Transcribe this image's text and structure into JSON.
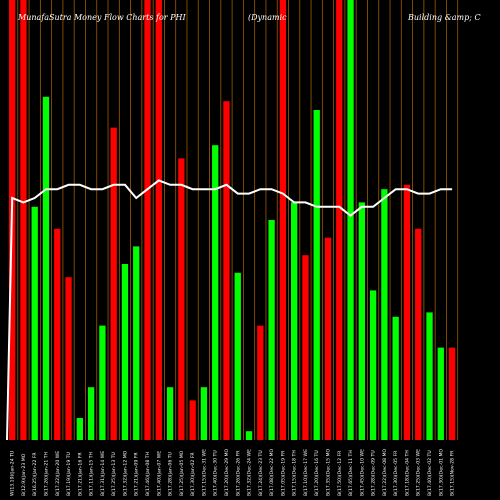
{
  "title_parts": [
    "MunafaSutra  Money Flow  Charts for PHI",
    "(Dynamic",
    "Building &amp; C"
  ],
  "chart_data": {
    "type": "bar",
    "ylim": [
      0,
      100
    ],
    "colors": {
      "up": "#00ff00",
      "down": "#ff0000",
      "line": "#ffffff",
      "grid": "#a05a00",
      "background": "#000000"
    },
    "bars": [
      {
        "value": 100,
        "color": "red"
      },
      {
        "value": 100,
        "color": "red"
      },
      {
        "value": 53,
        "color": "green"
      },
      {
        "value": 78,
        "color": "green"
      },
      {
        "value": 48,
        "color": "red"
      },
      {
        "value": 37,
        "color": "red"
      },
      {
        "value": 5,
        "color": "green"
      },
      {
        "value": 12,
        "color": "green"
      },
      {
        "value": 26,
        "color": "green"
      },
      {
        "value": 71,
        "color": "red"
      },
      {
        "value": 40,
        "color": "green"
      },
      {
        "value": 44,
        "color": "green"
      },
      {
        "value": 100,
        "color": "red"
      },
      {
        "value": 100,
        "color": "red"
      },
      {
        "value": 12,
        "color": "green"
      },
      {
        "value": 64,
        "color": "red"
      },
      {
        "value": 9,
        "color": "red"
      },
      {
        "value": 12,
        "color": "green"
      },
      {
        "value": 67,
        "color": "green"
      },
      {
        "value": 77,
        "color": "red"
      },
      {
        "value": 38,
        "color": "green"
      },
      {
        "value": 2,
        "color": "green"
      },
      {
        "value": 26,
        "color": "red"
      },
      {
        "value": 50,
        "color": "green"
      },
      {
        "value": 100,
        "color": "red"
      },
      {
        "value": 54,
        "color": "green"
      },
      {
        "value": 42,
        "color": "red"
      },
      {
        "value": 75,
        "color": "green"
      },
      {
        "value": 46,
        "color": "red"
      },
      {
        "value": 100,
        "color": "red"
      },
      {
        "value": 100,
        "color": "green"
      },
      {
        "value": 54,
        "color": "green"
      },
      {
        "value": 34,
        "color": "green"
      },
      {
        "value": 57,
        "color": "green"
      },
      {
        "value": 28,
        "color": "green"
      },
      {
        "value": 58,
        "color": "red"
      },
      {
        "value": 48,
        "color": "red"
      },
      {
        "value": 29,
        "color": "green"
      },
      {
        "value": 21,
        "color": "green"
      },
      {
        "value": 21,
        "color": "red"
      }
    ],
    "line": [
      55,
      54,
      55,
      57,
      57,
      58,
      58,
      57,
      57,
      58,
      58,
      55,
      57,
      59,
      58,
      58,
      57,
      57,
      57,
      58,
      56,
      56,
      57,
      57,
      56,
      54,
      54,
      53,
      53,
      53,
      51,
      53,
      53,
      55,
      57,
      57,
      56,
      56,
      57,
      57
    ],
    "x_tick_labels": [
      "W(13.19)(Jan-24 TU",
      "B(12.9)(Jan-23 MO",
      "B(16.25)(Jan-22 FR",
      "B(17.26)(Jan-21 TH",
      "B(17.22)(Jan-20 WE",
      "B(17.19)(Jan-19 TU",
      "B(17.21)(Jan-16 FR",
      "B(17.11)(Jan-15 TH",
      "B(17.31)(Jan-14 WE",
      "B(17.25)(Jan-13 TU",
      "B(17.32)(Jan-12 MO",
      "B(17.21)(Jan-09 FR",
      "B(17.46)(Jan-08 TH",
      "B(17.40)(Jan-07 WE",
      "B(17.28)(Jan-06 TU",
      "B(17.25)(Jan-05 MO",
      "B(17.30)(Jan-02 FR",
      "B(17.15)(Dec-31 WE",
      "B(17.40)(Dec-30 TU",
      "B(17.20)(Dec-29 MO",
      "B(17.26)(Dec-26 FR",
      "B(17.32)(Dec-24 WE",
      "B(17.24)(Dec-23 TU",
      "B(17.08)(Dec-22 MO",
      "B(17.05)(Dec-19 FR",
      "B(17.15)(Dec-18 TH",
      "B(17.10)(Dec-17 WE",
      "B(17.20)(Dec-16 TU",
      "B(17.35)(Dec-15 MO",
      "B(17.50)(Dec-12 FR",
      "B(17.65)(Dec-11 TH",
      "B(17.45)(Dec-10 WE",
      "B(17.28)(Dec-09 TU",
      "B(17.22)(Dec-08 MO",
      "B(17.30)(Dec-05 FR",
      "B(17.18)(Dec-04 TH",
      "B(17.25)(Dec-03 WE",
      "B(17.40)(Dec-02 TU",
      "B(17.30)(Dec-01 MO",
      "B(17.15)(Nov-28 FR"
    ]
  }
}
